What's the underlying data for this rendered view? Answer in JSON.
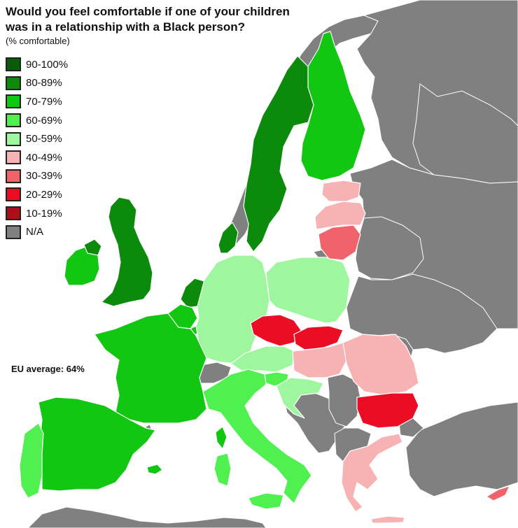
{
  "title_line1": "Would you feel comfortable if one of your children",
  "title_line2": "was in a relationship with a Black person?",
  "subtitle": "(% comfortable)",
  "eu_average_label": "EU average: 64%",
  "legend": [
    {
      "label": "90-100%",
      "color": "#0a5c0a"
    },
    {
      "label": "80-89%",
      "color": "#0c8a0c"
    },
    {
      "label": "70-79%",
      "color": "#11c711"
    },
    {
      "label": "60-69%",
      "color": "#4ff04f"
    },
    {
      "label": "50-59%",
      "color": "#9ef79e"
    },
    {
      "label": "40-49%",
      "color": "#f7b2b4"
    },
    {
      "label": "30-39%",
      "color": "#f0636a"
    },
    {
      "label": "20-29%",
      "color": "#ea0d24"
    },
    {
      "label": "10-19%",
      "color": "#a8101a"
    },
    {
      "label": "N/A",
      "color": "#808080"
    }
  ],
  "colors": {
    "sea": "#ffffff",
    "na": "#808080"
  },
  "countries": [
    {
      "name": "United Kingdom",
      "band": "80-89%"
    },
    {
      "name": "Ireland",
      "band": "70-79%"
    },
    {
      "name": "Sweden",
      "band": "80-89%"
    },
    {
      "name": "Denmark",
      "band": "80-89%"
    },
    {
      "name": "Netherlands",
      "band": "80-89%"
    },
    {
      "name": "Finland",
      "band": "70-79%"
    },
    {
      "name": "France",
      "band": "70-79%"
    },
    {
      "name": "Spain",
      "band": "70-79%"
    },
    {
      "name": "Belgium",
      "band": "70-79%"
    },
    {
      "name": "Luxembourg",
      "band": "70-79%"
    },
    {
      "name": "Portugal",
      "band": "60-69%"
    },
    {
      "name": "Italy",
      "band": "60-69%"
    },
    {
      "name": "Slovenia",
      "band": "60-69%"
    },
    {
      "name": "Germany",
      "band": "50-59%"
    },
    {
      "name": "Poland",
      "band": "50-59%"
    },
    {
      "name": "Austria",
      "band": "50-59%"
    },
    {
      "name": "Croatia",
      "band": "50-59%"
    },
    {
      "name": "Estonia",
      "band": "40-49%"
    },
    {
      "name": "Latvia",
      "band": "40-49%"
    },
    {
      "name": "Hungary",
      "band": "40-49%"
    },
    {
      "name": "Romania",
      "band": "40-49%"
    },
    {
      "name": "Greece",
      "band": "40-49%"
    },
    {
      "name": "Lithuania",
      "band": "30-39%"
    },
    {
      "name": "Cyprus",
      "band": "30-39%"
    },
    {
      "name": "Czechia",
      "band": "20-29%"
    },
    {
      "name": "Slovakia",
      "band": "20-29%"
    },
    {
      "name": "Bulgaria",
      "band": "20-29%"
    }
  ]
}
